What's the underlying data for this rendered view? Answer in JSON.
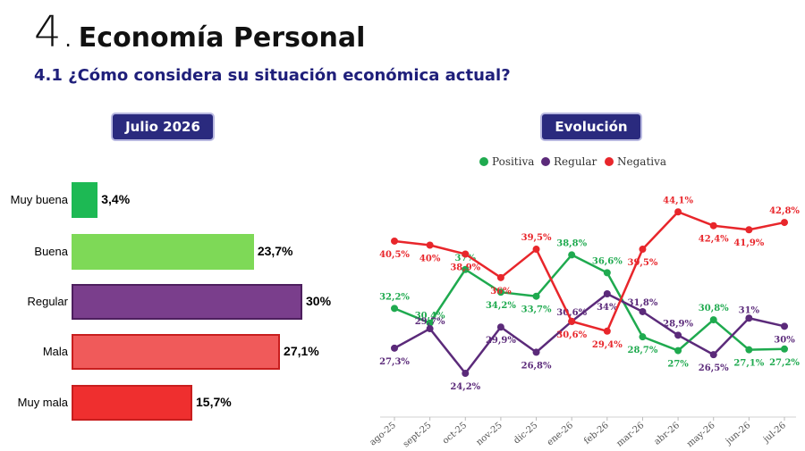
{
  "heading": {
    "number": "4.",
    "title": "Economía Personal"
  },
  "subheading": "4.1 ¿Cómo considera su situación económica actual?",
  "left_panel": {
    "pill": "Julio 2026"
  },
  "right_panel": {
    "pill": "Evolución"
  },
  "chart_data": [
    {
      "type": "bar",
      "orientation": "horizontal",
      "title": "Julio 2026",
      "categories": [
        "Muy buena",
        "Buena",
        "Regular",
        "Mala",
        "Muy mala"
      ],
      "values": [
        3.4,
        23.7,
        30,
        27.1,
        15.7
      ],
      "value_labels": [
        "3,4%",
        "23,7%",
        "30%",
        "27,1%",
        "15,7%"
      ],
      "colors": [
        "#1db954",
        "#7ed957",
        "#7a3e8c",
        "#f05a5a",
        "#ef2f2f"
      ],
      "xlim": [
        0,
        30
      ]
    },
    {
      "type": "line",
      "title": "Evolución",
      "x": [
        "ago-25",
        "sept-25",
        "oct-25",
        "nov-25",
        "dic-25",
        "ene-26",
        "feb-26",
        "mar-26",
        "abr-26",
        "may-26",
        "jun-26",
        "jul-26"
      ],
      "series": [
        {
          "name": "Positiva",
          "color": "#1faa4f",
          "values": [
            32.2,
            30.4,
            37,
            34.2,
            33.7,
            38.8,
            36.6,
            28.7,
            27,
            30.8,
            27.1,
            27.2
          ],
          "labels": [
            "32,2%",
            "30,4%",
            "37%",
            "34,2%",
            "33,7%",
            "38,8%",
            "36,6%",
            "28,7%",
            "27%",
            "30,8%",
            "27,1%",
            "27,2%"
          ]
        },
        {
          "name": "Regular",
          "color": "#5b2a7a",
          "values": [
            27.3,
            29.7,
            24.2,
            29.9,
            26.8,
            30.6,
            34,
            31.8,
            28.9,
            26.5,
            31,
            30
          ],
          "labels": [
            "27,3%",
            "29,7%",
            "24,2%",
            "29,9%",
            "26,8%",
            "30,6%",
            "34%",
            "31,8%",
            "28,9%",
            "26,5%",
            "31%",
            "30%"
          ]
        },
        {
          "name": "Negativa",
          "color": "#e8262b",
          "values": [
            40.5,
            40,
            38.9,
            36,
            39.5,
            30.6,
            29.4,
            39.5,
            44.1,
            42.4,
            41.9,
            42.8
          ],
          "labels": [
            "40,5%",
            "40%",
            "38,9%",
            "36%",
            "39,5%",
            "30,6%",
            "29,4%",
            "39,5%",
            "44,1%",
            "42,4%",
            "41,9%",
            "42,8%"
          ]
        }
      ],
      "ylim": [
        22,
        46
      ],
      "legend": "top",
      "grid": false
    }
  ]
}
